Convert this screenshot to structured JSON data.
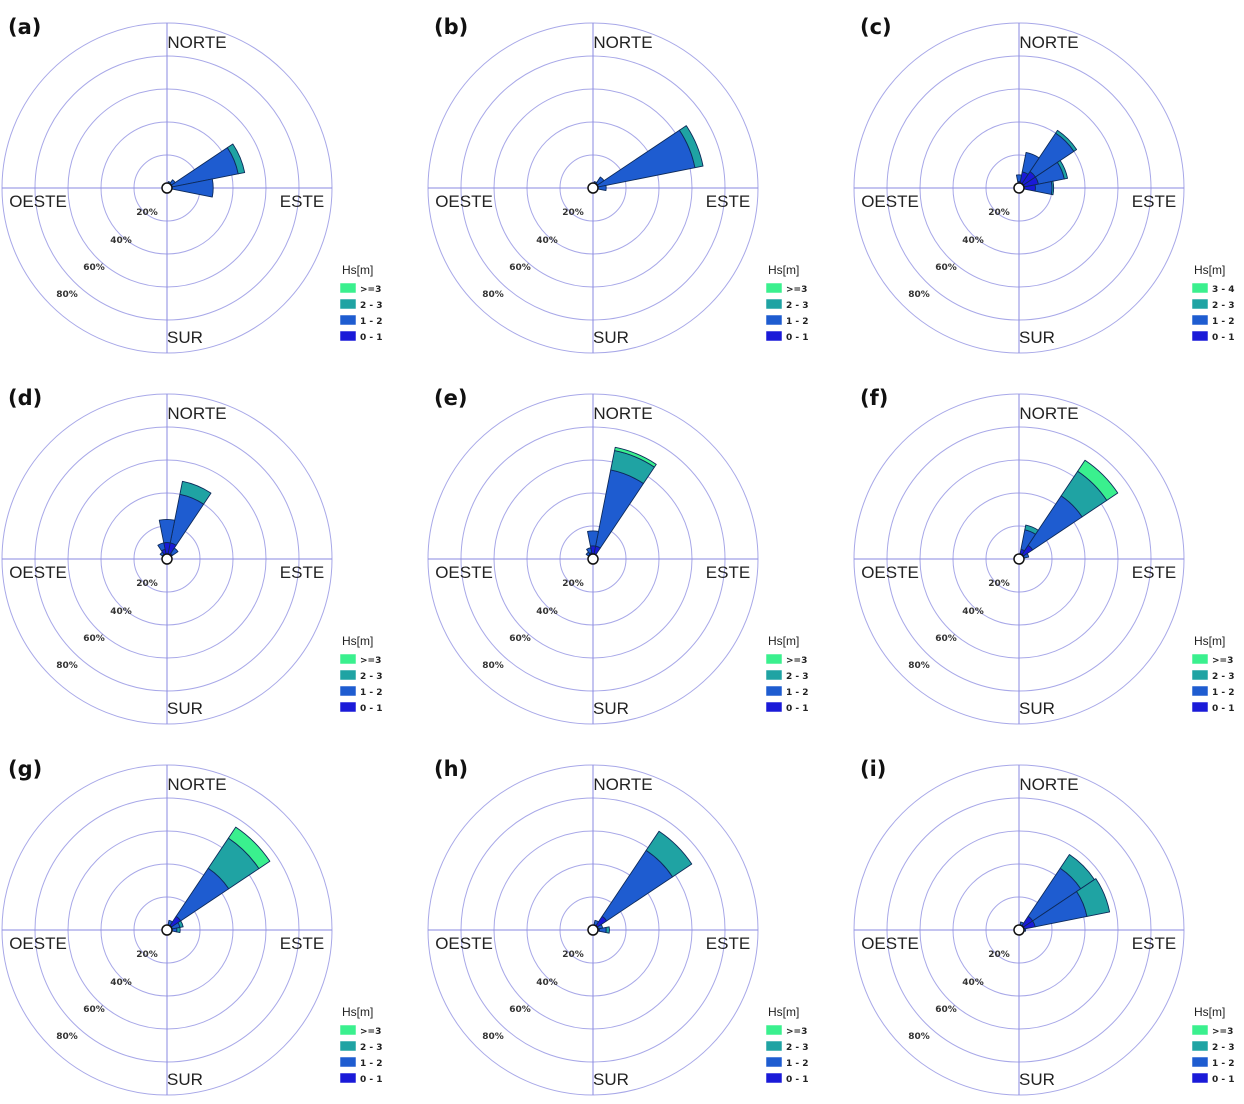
{
  "colors": {
    "bin_0_1": "#1a1ad8",
    "bin_1_2": "#1e5cd0",
    "bin_2_3": "#1fa3a3",
    "bin_3plus": "#3af08e",
    "grid": "#a8a8e8",
    "axis": "#8a8ae0",
    "outline": "#0d2a5a"
  },
  "chart_data": [
    {
      "type": "windrose",
      "panel_label": "(a)",
      "direction_labels": {
        "north": "NORTE",
        "east": "ESTE",
        "south": "SUR",
        "west": "OESTE"
      },
      "ring_labels": [
        "20%",
        "40%",
        "60%",
        "80%"
      ],
      "rmax": 100,
      "legend": {
        "title": "Hs[m]",
        "entries": [
          "0 - 1",
          "1 - 2",
          "2 - 3",
          ">=3"
        ]
      },
      "sectors": [
        {
          "direction": 67.5,
          "values": [
            3,
            41,
            4,
            0
          ]
        },
        {
          "direction": 90,
          "values": [
            2,
            26,
            0,
            0
          ]
        },
        {
          "direction": 45,
          "values": [
            2,
            4,
            0,
            0
          ]
        },
        {
          "direction": 22.5,
          "values": [
            2,
            2,
            0,
            0
          ]
        }
      ]
    },
    {
      "type": "windrose",
      "panel_label": "(b)",
      "direction_labels": {
        "north": "NORTE",
        "east": "ESTE",
        "south": "SUR",
        "west": "OESTE"
      },
      "ring_labels": [
        "20%",
        "40%",
        "60%",
        "80%"
      ],
      "rmax": 100,
      "legend": {
        "title": "Hs[m]",
        "entries": [
          "0 - 1",
          "1 - 2",
          "2 - 3",
          ">=3"
        ]
      },
      "sectors": [
        {
          "direction": 67.5,
          "values": [
            3,
            60,
            5,
            0
          ]
        },
        {
          "direction": 90,
          "values": [
            2,
            6,
            0,
            0
          ]
        },
        {
          "direction": 45,
          "values": [
            2,
            6,
            0,
            0
          ]
        },
        {
          "direction": 22.5,
          "values": [
            2,
            2,
            0,
            0
          ]
        }
      ]
    },
    {
      "type": "windrose",
      "panel_label": "(c)",
      "direction_labels": {
        "north": "NORTE",
        "east": "ESTE",
        "south": "SUR",
        "west": "OESTE"
      },
      "ring_labels": [
        "20%",
        "40%",
        "60%",
        "80%"
      ],
      "rmax": 100,
      "legend": {
        "title": "Hs[m]",
        "entries": [
          "0 - 1",
          "1 - 2",
          "2 - 3",
          "3 - 4"
        ]
      },
      "sectors": [
        {
          "direction": 45,
          "values": [
            12,
            28,
            2,
            0
          ]
        },
        {
          "direction": 67.5,
          "values": [
            12,
            16,
            2,
            0
          ]
        },
        {
          "direction": 90,
          "values": [
            10,
            10,
            1,
            0
          ]
        },
        {
          "direction": 22.5,
          "values": [
            10,
            12,
            0,
            0
          ]
        },
        {
          "direction": 0,
          "values": [
            4,
            4,
            0,
            0
          ]
        }
      ]
    },
    {
      "type": "windrose",
      "panel_label": "(d)",
      "direction_labels": {
        "north": "NORTE",
        "east": "ESTE",
        "south": "SUR",
        "west": "OESTE"
      },
      "ring_labels": [
        "20%",
        "40%",
        "60%",
        "80%"
      ],
      "rmax": 100,
      "legend": {
        "title": "Hs[m]",
        "entries": [
          "0 - 1",
          "1 - 2",
          "2 - 3",
          ">=3"
        ]
      },
      "sectors": [
        {
          "direction": 22.5,
          "values": [
            10,
            30,
            8,
            0
          ]
        },
        {
          "direction": 0,
          "values": [
            10,
            14,
            0,
            0
          ]
        },
        {
          "direction": 337.5,
          "values": [
            6,
            4,
            0,
            0
          ]
        },
        {
          "direction": 45,
          "values": [
            4,
            4,
            0,
            0
          ]
        },
        {
          "direction": 315,
          "values": [
            3,
            2,
            0,
            0
          ]
        }
      ]
    },
    {
      "type": "windrose",
      "panel_label": "(e)",
      "direction_labels": {
        "north": "NORTE",
        "east": "ESTE",
        "south": "SUR",
        "west": "OESTE"
      },
      "ring_labels": [
        "20%",
        "40%",
        "60%",
        "80%"
      ],
      "rmax": 100,
      "legend": {
        "title": "Hs[m]",
        "entries": [
          "0 - 1",
          "1 - 2",
          "2 - 3",
          ">=3"
        ]
      },
      "sectors": [
        {
          "direction": 22.5,
          "values": [
            8,
            47,
            12,
            2
          ]
        },
        {
          "direction": 0,
          "values": [
            8,
            9,
            0,
            0
          ]
        },
        {
          "direction": 337.5,
          "values": [
            4,
            3,
            0,
            0
          ]
        },
        {
          "direction": 315,
          "values": [
            3,
            2,
            0,
            0
          ]
        }
      ]
    },
    {
      "type": "windrose",
      "panel_label": "(f)",
      "direction_labels": {
        "north": "NORTE",
        "east": "ESTE",
        "south": "SUR",
        "west": "OESTE"
      },
      "ring_labels": [
        "20%",
        "40%",
        "60%",
        "80%"
      ],
      "rmax": 100,
      "legend": {
        "title": "Hs[m]",
        "entries": [
          "0 - 1",
          "1 - 2",
          "2 - 3",
          ">=3"
        ]
      },
      "sectors": [
        {
          "direction": 45,
          "values": [
            10,
            36,
            18,
            8
          ]
        },
        {
          "direction": 22.5,
          "values": [
            6,
            12,
            3,
            0
          ]
        },
        {
          "direction": 67.5,
          "values": [
            3,
            3,
            0,
            0
          ]
        }
      ]
    },
    {
      "type": "windrose",
      "panel_label": "(g)",
      "direction_labels": {
        "north": "NORTE",
        "east": "ESTE",
        "south": "SUR",
        "west": "OESTE"
      },
      "ring_labels": [
        "20%",
        "40%",
        "60%",
        "80%"
      ],
      "rmax": 100,
      "legend": {
        "title": "Hs[m]",
        "entries": [
          "0 - 1",
          "1 - 2",
          "2 - 3",
          ">=3"
        ]
      },
      "sectors": [
        {
          "direction": 45,
          "values": [
            10,
            35,
            22,
            8
          ]
        },
        {
          "direction": 67.5,
          "values": [
            3,
            5,
            2,
            0
          ]
        },
        {
          "direction": 90,
          "values": [
            3,
            3,
            2,
            0
          ]
        },
        {
          "direction": 22.5,
          "values": [
            3,
            3,
            0,
            0
          ]
        }
      ]
    },
    {
      "type": "windrose",
      "panel_label": "(h)",
      "direction_labels": {
        "north": "NORTE",
        "east": "ESTE",
        "south": "SUR",
        "west": "OESTE"
      },
      "ring_labels": [
        "20%",
        "40%",
        "60%",
        "80%"
      ],
      "rmax": 100,
      "legend": {
        "title": "Hs[m]",
        "entries": [
          "0 - 1",
          "1 - 2",
          "2 - 3",
          ">=3"
        ]
      },
      "sectors": [
        {
          "direction": 45,
          "values": [
            10,
            48,
            14,
            0
          ]
        },
        {
          "direction": 67.5,
          "values": [
            3,
            3,
            0,
            0
          ]
        },
        {
          "direction": 90,
          "values": [
            4,
            4,
            2,
            0
          ]
        },
        {
          "direction": 22.5,
          "values": [
            3,
            3,
            0,
            0
          ]
        }
      ]
    },
    {
      "type": "windrose",
      "panel_label": "(i)",
      "direction_labels": {
        "north": "NORTE",
        "east": "ESTE",
        "south": "SUR",
        "west": "OESTE"
      },
      "ring_labels": [
        "20%",
        "40%",
        "60%",
        "80%"
      ],
      "rmax": 100,
      "legend": {
        "title": "Hs[m]",
        "entries": [
          "0 - 1",
          "1 - 2",
          "2 - 3",
          ">=3"
        ]
      },
      "sectors": [
        {
          "direction": 45,
          "values": [
            10,
            35,
            10,
            0
          ]
        },
        {
          "direction": 67.5,
          "values": [
            10,
            32,
            14,
            0
          ]
        },
        {
          "direction": 22.5,
          "values": [
            3,
            2,
            0,
            0
          ]
        },
        {
          "direction": 90,
          "values": [
            2,
            2,
            0,
            0
          ]
        }
      ]
    }
  ]
}
